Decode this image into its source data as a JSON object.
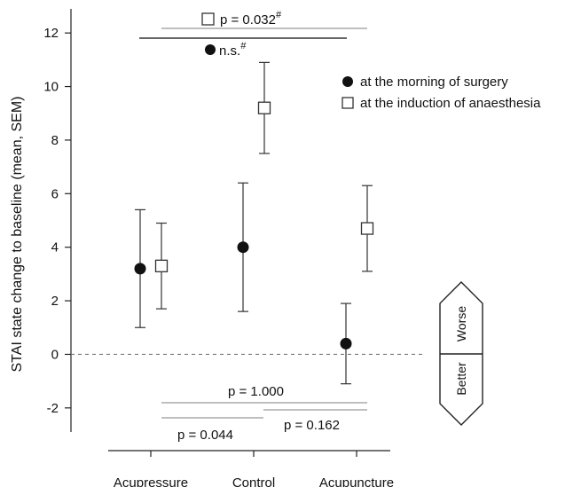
{
  "chart_data": {
    "type": "scatter",
    "ylabel": "STAI state change to baseline (mean, SEM)",
    "xlabel": "",
    "ylim": [
      -2.9,
      12.9
    ],
    "yticks": [
      -2,
      0,
      2,
      4,
      6,
      8,
      10,
      12
    ],
    "ytick_labels": [
      "-2",
      "0",
      "2",
      "4",
      "6",
      "8",
      "10",
      "12"
    ],
    "categories": [
      "Acupressure",
      "Control",
      "Acupuncture"
    ],
    "baseline": 0,
    "series": [
      {
        "name": "at the morning of surgery",
        "marker": "filled-circle",
        "values": [
          3.2,
          4.0,
          0.4
        ],
        "err_low": [
          1.0,
          1.6,
          -1.1
        ],
        "err_high": [
          5.4,
          6.4,
          1.9
        ]
      },
      {
        "name": "at the induction of anaesthesia",
        "marker": "open-square",
        "values": [
          3.3,
          9.2,
          4.7
        ],
        "err_low": [
          1.7,
          7.5,
          3.1
        ],
        "err_high": [
          4.9,
          10.9,
          6.3
        ]
      }
    ],
    "legend": {
      "placement": "top-right",
      "items": [
        {
          "marker": "filled-circle",
          "label": "at the morning of surgery"
        },
        {
          "marker": "open-square",
          "label": "at the induction of anaesthesia"
        }
      ]
    },
    "annotations": {
      "top_square_label": "p = 0.032",
      "top_square_mark": "#",
      "top_circle_label": "n.s.",
      "top_circle_mark": "#",
      "bottom_p_all": "p = 1.000",
      "bottom_p_left": "p = 0.044",
      "bottom_p_right": "p = 0.162"
    },
    "direction_indicator": {
      "up_label": "Worse",
      "down_label": "Better"
    }
  }
}
